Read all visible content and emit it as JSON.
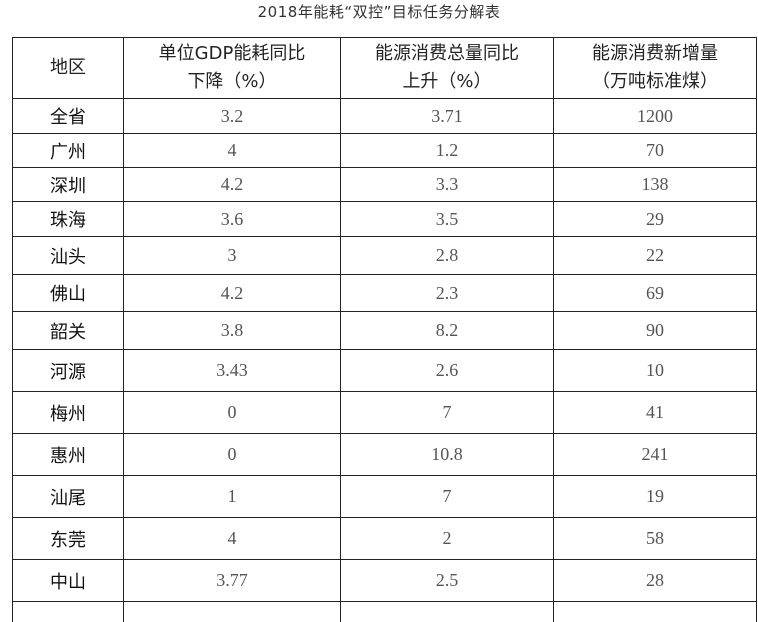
{
  "title": "2018年能耗“双控”目标任务分解表",
  "table": {
    "headers": [
      "地区",
      "单位GDP能耗同比\n下降（%）",
      "能源消费总量同比\n上升（%）",
      "能源消费新增量\n（万吨标准煤）"
    ],
    "header_lines": [
      [
        "地区"
      ],
      [
        "单位GDP能耗同比",
        "下降（%）"
      ],
      [
        "能源消费总量同比",
        "上升（%）"
      ],
      [
        "能源消费新增量",
        "（万吨标准煤）"
      ]
    ],
    "rows": [
      [
        "全省",
        "3.2",
        "3.71",
        "1200"
      ],
      [
        "广州",
        "4",
        "1.2",
        "70"
      ],
      [
        "深圳",
        "4.2",
        "3.3",
        "138"
      ],
      [
        "珠海",
        "3.6",
        "3.5",
        "29"
      ],
      [
        "汕头",
        "3",
        "2.8",
        "22"
      ],
      [
        "佛山",
        "4.2",
        "2.3",
        "69"
      ],
      [
        "韶关",
        "3.8",
        "8.2",
        "90"
      ],
      [
        "河源",
        "3.43",
        "2.6",
        "10"
      ],
      [
        "梅州",
        "0",
        "7",
        "41"
      ],
      [
        "惠州",
        "0",
        "10.8",
        "241"
      ],
      [
        "汕尾",
        "1",
        "7",
        "19"
      ],
      [
        "东莞",
        "4",
        "2",
        "58"
      ],
      [
        "中山",
        "3.77",
        "2.5",
        "28"
      ]
    ]
  }
}
